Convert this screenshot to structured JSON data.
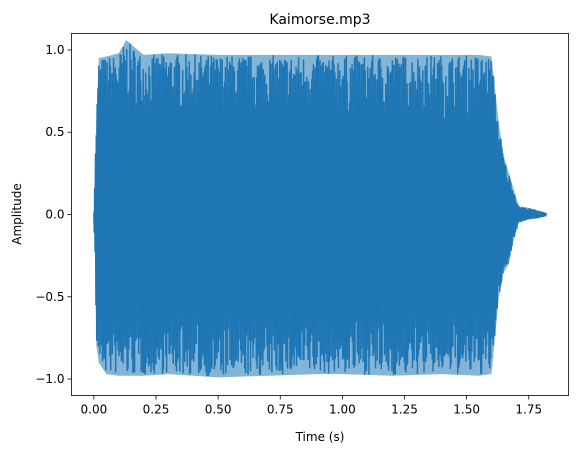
{
  "chart_data": {
    "type": "line",
    "title": "Kaimorse.mp3",
    "xlabel": "Time (s)",
    "ylabel": "Amplitude",
    "xlim": [
      -0.09,
      1.91
    ],
    "ylim": [
      -1.1,
      1.1
    ],
    "x_ticks": [
      0.0,
      0.25,
      0.5,
      0.75,
      1.0,
      1.25,
      1.5,
      1.75
    ],
    "x_tick_labels": [
      "0.00",
      "0.25",
      "0.50",
      "0.75",
      "1.00",
      "1.25",
      "1.50",
      "1.75"
    ],
    "y_ticks": [
      -1.0,
      -0.5,
      0.0,
      0.5,
      1.0
    ],
    "y_tick_labels": [
      "−1.0",
      "−0.5",
      "0.0",
      "0.5",
      "1.0"
    ],
    "grid": false,
    "color": "#1f77b4",
    "series": [
      {
        "x": [
          0.0,
          0.005,
          0.01,
          0.02,
          0.05,
          0.1,
          0.13,
          0.2,
          0.3,
          0.5,
          0.7,
          0.9,
          1.0,
          1.2,
          1.4,
          1.55,
          1.6,
          1.63,
          1.65,
          1.67,
          1.69,
          1.71,
          1.75,
          1.8,
          1.82
        ],
        "max": [
          0.02,
          0.3,
          0.6,
          0.95,
          0.96,
          0.98,
          1.06,
          0.97,
          0.98,
          0.97,
          0.97,
          0.97,
          0.97,
          0.97,
          0.97,
          0.97,
          0.96,
          0.55,
          0.35,
          0.25,
          0.15,
          0.05,
          0.04,
          0.02,
          0.01
        ],
        "min": [
          -0.02,
          -0.3,
          -0.8,
          -0.9,
          -0.97,
          -0.98,
          -0.98,
          -0.98,
          -0.97,
          -0.99,
          -0.98,
          -0.97,
          -0.97,
          -0.98,
          -0.97,
          -0.98,
          -0.97,
          -0.5,
          -0.35,
          -0.3,
          -0.15,
          -0.05,
          -0.03,
          -0.02,
          -0.01
        ]
      }
    ]
  }
}
